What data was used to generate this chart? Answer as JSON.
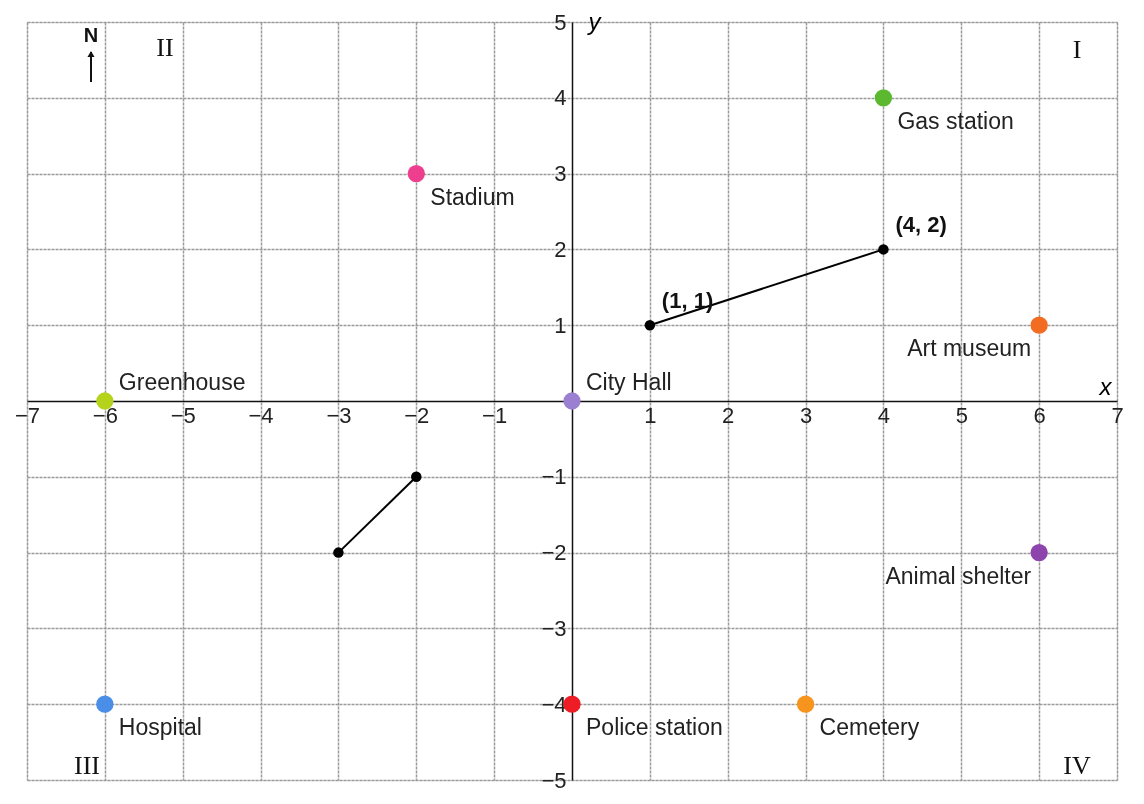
{
  "chart_data": {
    "type": "scatter",
    "xlabel": "x",
    "ylabel": "y",
    "xlim": [
      -7,
      7
    ],
    "ylim": [
      -5,
      5
    ],
    "xticks": [
      -7,
      -6,
      -5,
      -4,
      -3,
      -2,
      -1,
      1,
      2,
      3,
      4,
      5,
      6,
      7
    ],
    "yticks": [
      -5,
      -4,
      -3,
      -2,
      -1,
      1,
      2,
      3,
      4,
      5
    ],
    "grid": true,
    "marker": "circle",
    "series": [
      {
        "name": "Gas station",
        "color": "#5cb82e",
        "x": [
          4
        ],
        "values": [
          4
        ]
      },
      {
        "name": "Stadium",
        "color": "#ee3f8e",
        "x": [
          -2
        ],
        "values": [
          3
        ]
      },
      {
        "name": "Art museum",
        "color": "#f26d21",
        "x": [
          6
        ],
        "values": [
          1
        ]
      },
      {
        "name": "Greenhouse",
        "color": "#b5d31a",
        "x": [
          -6
        ],
        "values": [
          0
        ]
      },
      {
        "name": "City Hall",
        "color": "#9b7fd0",
        "x": [
          0
        ],
        "values": [
          0
        ]
      },
      {
        "name": "Animal shelter",
        "color": "#8e44ad",
        "x": [
          6
        ],
        "values": [
          -2
        ]
      },
      {
        "name": "Hospital",
        "color": "#4a8ee8",
        "x": [
          -6
        ],
        "values": [
          -4
        ]
      },
      {
        "name": "Police station",
        "color": "#ee1c24",
        "x": [
          0
        ],
        "values": [
          -4
        ]
      },
      {
        "name": "Cemetery",
        "color": "#f7941d",
        "x": [
          3
        ],
        "values": [
          -4
        ]
      },
      {
        "type": "line",
        "color": "#000000",
        "x": [
          1,
          4
        ],
        "values": [
          1,
          2
        ]
      },
      {
        "type": "line",
        "color": "#000000",
        "x": [
          -3,
          -2
        ],
        "values": [
          -2,
          -1
        ]
      }
    ],
    "annotations": [
      {
        "text": "(1, 1)",
        "x": 1,
        "y": 1
      },
      {
        "text": "(4, 2)",
        "x": 4,
        "y": 2
      },
      "I",
      "II",
      "III",
      "IV",
      "N"
    ]
  }
}
